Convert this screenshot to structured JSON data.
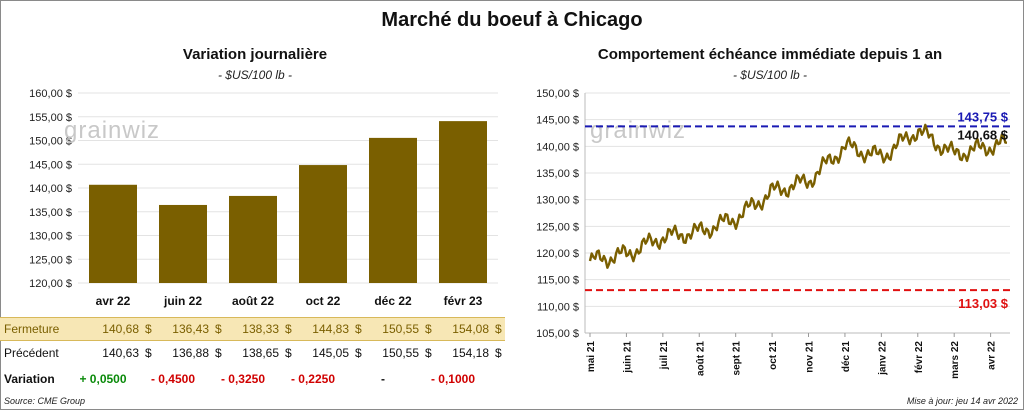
{
  "title": "Marché du boeuf à Chicago",
  "left": {
    "title": "Variation journalière",
    "subtitle": "- $US/100 lb -",
    "row_labels": {
      "close": "Fermeture",
      "prev": "Précédent",
      "var": "Variation"
    }
  },
  "right": {
    "title": "Comportement échéance immédiate depuis 1 an",
    "subtitle": "- $US/100 lb -",
    "max_label": "143,75 $",
    "min_label": "113,03 $",
    "last_label": "140,68 $"
  },
  "watermark": "grainwiz",
  "source": "Source: CME Group",
  "updated": "Mise à jour: jeu 14 avr 2022",
  "colors": {
    "bar": "#7a5f00",
    "band": "#f7e7b5",
    "max": "#1a1ab4",
    "min": "#e01010",
    "line": "#7a5f00"
  },
  "chart_data": [
    {
      "type": "bar",
      "categories": [
        "avr 22",
        "juin 22",
        "août 22",
        "oct 22",
        "déc 22",
        "févr 23"
      ],
      "values": [
        140.68,
        136.43,
        138.33,
        144.83,
        150.55,
        154.08
      ],
      "ylim": [
        120,
        160
      ],
      "yticks": [
        "120,00 $",
        "125,00 $",
        "130,00 $",
        "135,00 $",
        "140,00 $",
        "145,00 $",
        "150,00 $",
        "155,00 $",
        "160,00 $"
      ],
      "table": {
        "close": [
          "140,68",
          "136,43",
          "138,33",
          "144,83",
          "150,55",
          "154,08"
        ],
        "prev": [
          "140,63",
          "136,88",
          "138,65",
          "145,05",
          "150,55",
          "154,18"
        ],
        "variation": [
          "+ 0,0500",
          "- 0,4500",
          "- 0,3250",
          "- 0,2250",
          "-",
          "- 0,1000"
        ],
        "currency": "$"
      }
    },
    {
      "type": "line",
      "xlabels": [
        "mai 21",
        "juin 21",
        "juil 21",
        "août 21",
        "sept 21",
        "oct 21",
        "nov 21",
        "déc 21",
        "janv 22",
        "févr 22",
        "mars 22",
        "avr 22"
      ],
      "x_months": [
        0,
        1,
        2,
        3,
        4,
        5,
        6,
        7,
        8,
        9,
        10,
        11,
        11.45
      ],
      "y": [
        118.5,
        119.8,
        123.0,
        124.0,
        126.5,
        131.5,
        133.5,
        140.0,
        138.0,
        143.0,
        138.5,
        140.0,
        140.68
      ],
      "ylim": [
        105,
        150
      ],
      "yticks": [
        "105,00 $",
        "110,00 $",
        "115,00 $",
        "120,00 $",
        "125,00 $",
        "130,00 $",
        "135,00 $",
        "140,00 $",
        "145,00 $",
        "150,00 $"
      ],
      "max": 143.75,
      "min": 113.03
    }
  ]
}
